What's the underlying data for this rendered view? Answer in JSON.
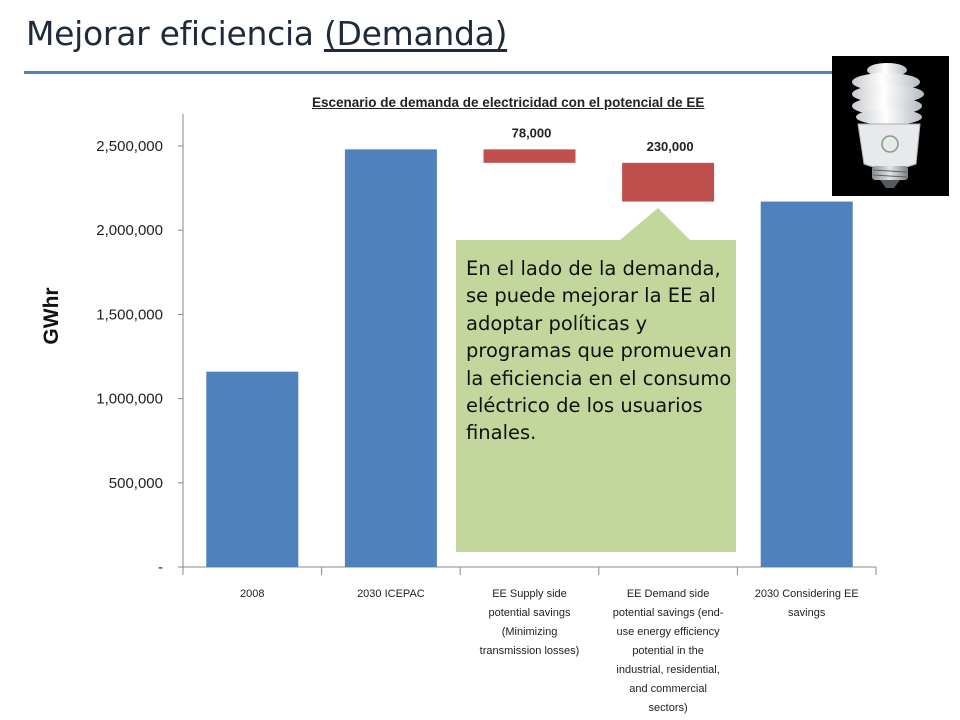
{
  "slide": {
    "title": "Mejorar eficiencia ",
    "title_underlined": "(Demanda)"
  },
  "callout": {
    "text": "En el lado de la demanda, se puede mejorar la EE al adoptar políticas y programas que promuevan la eficiencia en el consumo eléctrico de los usuarios finales.",
    "color": "#c3d69b"
  },
  "bulb": {
    "icon": "cfl-bulb-icon"
  },
  "chart_data": {
    "type": "bar",
    "title": "Escenario de demanda de electricidad con el potencial de EE",
    "ylabel": "GWhr",
    "xlabel": "",
    "ylim": [
      0,
      2500000
    ],
    "grid": false,
    "legend": "none",
    "yticks": [
      "-",
      "500,000",
      "1,000,000",
      "1,500,000",
      "2,000,000",
      "2,500,000"
    ],
    "categories": [
      [
        "2008"
      ],
      [
        "2030 ICEPAC"
      ],
      [
        "EE Supply side",
        "potential savings",
        "(Minimizing",
        "transmission losses)"
      ],
      [
        "EE Demand side",
        "potential savings (end-",
        "use energy efficiency",
        "potential in the",
        "industrial, residential,",
        "and commercial",
        "sectors)"
      ],
      [
        "2030 Considering EE",
        "savings"
      ]
    ],
    "bars": [
      {
        "bottom": 0,
        "top": 1160000,
        "color": "#4f81bd",
        "label": ""
      },
      {
        "bottom": 0,
        "top": 2480000,
        "color": "#4f81bd",
        "label": ""
      },
      {
        "bottom": 2400000,
        "top": 2480000,
        "color": "#c0504d",
        "label": "78,000"
      },
      {
        "bottom": 2170000,
        "top": 2400000,
        "color": "#c0504d",
        "label": "230,000"
      },
      {
        "bottom": 0,
        "top": 2170000,
        "color": "#4f81bd",
        "label": ""
      }
    ]
  }
}
